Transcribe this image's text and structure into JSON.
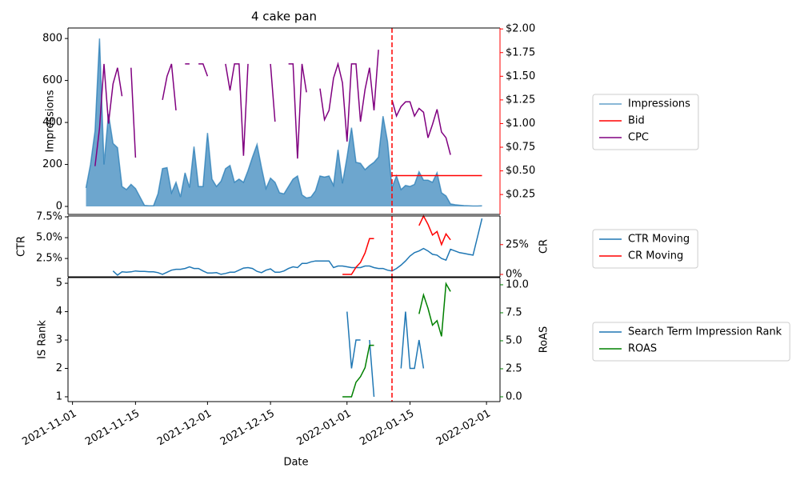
{
  "chart_data": [
    {
      "type": "line",
      "title": "4 cake pan",
      "ylabel": "Impressions",
      "x": [
        "2021-11-04",
        "2021-11-05",
        "2021-11-06",
        "2021-11-07",
        "2021-11-08",
        "2021-11-09",
        "2021-11-10",
        "2021-11-11",
        "2021-11-12",
        "2021-11-13",
        "2021-11-14",
        "2021-11-15",
        "2021-11-16",
        "2021-11-17",
        "2021-11-18",
        "2021-11-19",
        "2021-11-20",
        "2021-11-21",
        "2021-11-22",
        "2021-11-23",
        "2021-11-24",
        "2021-11-25",
        "2021-11-26",
        "2021-11-27",
        "2021-11-28",
        "2021-11-29",
        "2021-11-30",
        "2021-12-01",
        "2021-12-02",
        "2021-12-03",
        "2021-12-04",
        "2021-12-05",
        "2021-12-06",
        "2021-12-07",
        "2021-12-08",
        "2021-12-09",
        "2021-12-10",
        "2021-12-11",
        "2021-12-12",
        "2021-12-13",
        "2021-12-14",
        "2021-12-15",
        "2021-12-16",
        "2021-12-17",
        "2021-12-18",
        "2021-12-19",
        "2021-12-20",
        "2021-12-21",
        "2021-12-22",
        "2021-12-23",
        "2021-12-24",
        "2021-12-25",
        "2021-12-26",
        "2021-12-27",
        "2021-12-28",
        "2021-12-29",
        "2021-12-30",
        "2021-12-31",
        "2022-01-01",
        "2022-01-02",
        "2022-01-03",
        "2022-01-04",
        "2022-01-05",
        "2022-01-06",
        "2022-01-07",
        "2022-01-08",
        "2022-01-09",
        "2022-01-10",
        "2022-01-11",
        "2022-01-12",
        "2022-01-13",
        "2022-01-14",
        "2022-01-15",
        "2022-01-16",
        "2022-01-17",
        "2022-01-18",
        "2022-01-19",
        "2022-01-20",
        "2022-01-21",
        "2022-01-22",
        "2022-01-23",
        "2022-01-24",
        "2022-01-25",
        "2022-01-26",
        "2022-01-27",
        "2022-01-28",
        "2022-01-29",
        "2022-01-30",
        "2022-01-31"
      ],
      "xlim": [
        "2021-10-31",
        "2022-02-04"
      ],
      "ylim": [
        -38,
        850
      ],
      "yticks": [
        0,
        200,
        400,
        600,
        800
      ],
      "y2lim": [
        0.04,
        2.01
      ],
      "y2ticks": [
        {
          "value": 0.25,
          "label": "$0.25"
        },
        {
          "value": 0.5,
          "label": "$0.50"
        },
        {
          "value": 0.75,
          "label": "$0.75"
        },
        {
          "value": 1,
          "label": "$1.00"
        },
        {
          "value": 1.25,
          "label": "$1.25"
        },
        {
          "value": 1.5,
          "label": "$1.50"
        },
        {
          "value": 1.75,
          "label": "$1.75"
        },
        {
          "value": 2,
          "label": "$2.00"
        }
      ],
      "ytick_color": "blue",
      "y2tick_color": "red",
      "y2_spine_color": "red",
      "vline": "2022-01-11",
      "vline_color": "red",
      "legend": "outside right",
      "series": [
        {
          "name": "Impressions",
          "type": "area",
          "color": "#1f77b4",
          "values": [
            88,
            200,
            360,
            800,
            200,
            440,
            300,
            280,
            95,
            80,
            105,
            85,
            45,
            5,
            3,
            3,
            60,
            180,
            185,
            65,
            115,
            45,
            160,
            90,
            285,
            95,
            95,
            350,
            130,
            95,
            120,
            180,
            195,
            115,
            130,
            115,
            170,
            235,
            295,
            185,
            85,
            135,
            115,
            65,
            60,
            95,
            130,
            145,
            55,
            40,
            45,
            75,
            145,
            140,
            145,
            100,
            270,
            110,
            235,
            375,
            210,
            205,
            175,
            195,
            210,
            235,
            430,
            310,
            90,
            145,
            80,
            100,
            95,
            105,
            165,
            125,
            125,
            115,
            160,
            65,
            50,
            12,
            8,
            6,
            4,
            3,
            2,
            2,
            3
          ]
        },
        {
          "name": "Bid",
          "color": "red",
          "axis": "y2",
          "values": [
            null,
            null,
            null,
            null,
            null,
            null,
            null,
            null,
            null,
            null,
            null,
            null,
            null,
            null,
            null,
            null,
            null,
            null,
            null,
            null,
            null,
            null,
            null,
            null,
            null,
            null,
            null,
            null,
            null,
            null,
            null,
            null,
            null,
            null,
            null,
            null,
            null,
            null,
            null,
            null,
            null,
            null,
            null,
            null,
            null,
            null,
            null,
            null,
            null,
            null,
            null,
            null,
            null,
            null,
            null,
            null,
            null,
            null,
            null,
            null,
            null,
            null,
            null,
            null,
            null,
            null,
            null,
            null,
            0.45,
            0.45,
            0.45,
            0.45,
            0.45,
            0.45,
            0.45,
            0.45,
            0.45,
            0.45,
            0.45,
            0.45,
            0.45,
            0.45,
            0.45,
            0.45,
            0.45,
            0.45,
            0.45,
            0.45,
            0.45
          ]
        },
        {
          "name": "CPC",
          "color": "purple",
          "axis": "y2",
          "values": [
            null,
            null,
            0.55,
            0.95,
            1.63,
            1.0,
            1.42,
            1.59,
            1.29,
            null,
            1.59,
            0.64,
            null,
            null,
            null,
            null,
            null,
            1.25,
            1.5,
            1.63,
            1.14,
            null,
            1.63,
            1.63,
            null,
            1.63,
            1.63,
            1.5,
            null,
            null,
            null,
            1.63,
            1.35,
            1.63,
            1.63,
            0.66,
            1.63,
            null,
            null,
            null,
            null,
            1.63,
            1.02,
            null,
            null,
            1.63,
            1.63,
            0.63,
            1.63,
            1.33,
            null,
            null,
            1.37,
            1.04,
            1.14,
            1.48,
            1.63,
            1.43,
            0.81,
            1.63,
            1.63,
            1.02,
            1.36,
            1.59,
            1.14,
            1.78,
            null,
            null,
            1.25,
            1.08,
            1.18,
            1.23,
            1.23,
            1.08,
            1.16,
            1.12,
            0.85,
            0.99,
            1.15,
            0.91,
            0.85,
            0.67,
            null,
            null,
            null,
            null,
            null,
            null,
            null
          ]
        }
      ]
    },
    {
      "type": "line",
      "ylabel": "CTR",
      "y2label": "CR",
      "x": [
        "2021-11-10",
        "2021-11-11",
        "2021-11-12",
        "2021-11-13",
        "2021-11-14",
        "2021-11-15",
        "2021-11-16",
        "2021-11-17",
        "2021-11-18",
        "2021-11-19",
        "2021-11-20",
        "2021-11-21",
        "2021-11-22",
        "2021-11-23",
        "2021-11-24",
        "2021-11-25",
        "2021-11-26",
        "2021-11-27",
        "2021-11-28",
        "2021-11-29",
        "2021-11-30",
        "2021-12-01",
        "2021-12-02",
        "2021-12-03",
        "2021-12-04",
        "2021-12-05",
        "2021-12-06",
        "2021-12-07",
        "2021-12-08",
        "2021-12-09",
        "2021-12-10",
        "2021-12-11",
        "2021-12-12",
        "2021-12-13",
        "2021-12-14",
        "2021-12-15",
        "2021-12-16",
        "2021-12-17",
        "2021-12-18",
        "2021-12-19",
        "2021-12-20",
        "2021-12-21",
        "2021-12-22",
        "2021-12-23",
        "2021-12-24",
        "2021-12-25",
        "2021-12-26",
        "2021-12-27",
        "2021-12-28",
        "2021-12-29",
        "2021-12-30",
        "2021-12-31",
        "2022-01-01",
        "2022-01-02",
        "2022-01-03",
        "2022-01-04",
        "2022-01-05",
        "2022-01-06",
        "2022-01-07",
        "2022-01-08",
        "2022-01-09",
        "2022-01-10",
        "2022-01-11",
        "2022-01-12",
        "2022-01-13",
        "2022-01-14",
        "2022-01-15",
        "2022-01-16",
        "2022-01-17",
        "2022-01-18",
        "2022-01-19",
        "2022-01-20",
        "2022-01-21",
        "2022-01-22",
        "2022-01-23",
        "2022-01-24",
        "2022-01-25",
        "2022-01-26",
        "2022-01-27",
        "2022-01-28",
        "2022-01-29",
        "2022-01-30",
        "2022-01-31"
      ],
      "xlim": [
        "2021-10-31",
        "2022-02-04"
      ],
      "ylim": [
        0.3,
        7.6
      ],
      "yticks": [
        {
          "value": 2.5,
          "label": "2.5%"
        },
        {
          "value": 5,
          "label": "5.0%"
        },
        {
          "value": 7.5,
          "label": "7.5%"
        }
      ],
      "y2lim": [
        -2,
        49
      ],
      "y2ticks": [
        {
          "value": 0,
          "label": "0%"
        },
        {
          "value": 25,
          "label": "25%"
        }
      ],
      "ytick_color": "blue",
      "y2tick_color": "red",
      "vline": "2022-01-11",
      "vline_color": "red",
      "legend": "outside right",
      "series": [
        {
          "name": "CTR Moving",
          "color": "#1f77b4",
          "values": [
            1.0,
            0.5,
            0.9,
            0.85,
            0.9,
            1.0,
            0.95,
            0.95,
            0.9,
            0.9,
            0.8,
            0.6,
            0.85,
            1.1,
            1.2,
            1.2,
            1.3,
            1.5,
            1.3,
            1.3,
            1.0,
            0.75,
            0.75,
            0.8,
            0.6,
            0.7,
            0.85,
            0.85,
            1.1,
            1.35,
            1.4,
            1.3,
            0.95,
            0.8,
            1.1,
            1.25,
            0.85,
            0.85,
            1.0,
            1.3,
            1.5,
            1.4,
            1.9,
            1.9,
            2.1,
            2.2,
            2.2,
            2.2,
            2.2,
            1.4,
            1.6,
            1.6,
            1.5,
            1.4,
            1.4,
            1.4,
            1.6,
            1.6,
            1.4,
            1.3,
            1.3,
            1.1,
            1.0,
            1.3,
            1.7,
            2.2,
            2.8,
            3.2,
            3.4,
            3.7,
            3.4,
            3.0,
            2.9,
            2.5,
            2.3,
            3.6,
            3.4,
            3.2,
            3.1,
            3.0,
            2.9,
            5.1,
            7.3
          ]
        },
        {
          "name": "CR Moving",
          "color": "red",
          "axis": "y2",
          "values": [
            null,
            null,
            null,
            null,
            null,
            null,
            null,
            null,
            null,
            null,
            null,
            null,
            null,
            null,
            null,
            null,
            null,
            null,
            null,
            null,
            null,
            null,
            null,
            null,
            null,
            null,
            null,
            null,
            null,
            null,
            null,
            null,
            null,
            null,
            null,
            null,
            null,
            null,
            null,
            null,
            null,
            null,
            null,
            null,
            null,
            null,
            null,
            null,
            null,
            null,
            null,
            0,
            0,
            0,
            6,
            10,
            18,
            30,
            30,
            null,
            null,
            null,
            null,
            null,
            null,
            null,
            null,
            null,
            41,
            49,
            42,
            33,
            36,
            25,
            34,
            29,
            null,
            null,
            null,
            null,
            null,
            null,
            null
          ]
        }
      ]
    },
    {
      "type": "line",
      "ylabel": "IS Rank",
      "y2label": "RoAS",
      "xlabel": "Date",
      "x": [
        "2021-12-31",
        "2022-01-01",
        "2022-01-02",
        "2022-01-03",
        "2022-01-04",
        "2022-01-05",
        "2022-01-06",
        "2022-01-07",
        "2022-01-08",
        "2022-01-09",
        "2022-01-10",
        "2022-01-11",
        "2022-01-12",
        "2022-01-13",
        "2022-01-14",
        "2022-01-15",
        "2022-01-16",
        "2022-01-17",
        "2022-01-18",
        "2022-01-19",
        "2022-01-20",
        "2022-01-21",
        "2022-01-22",
        "2022-01-23",
        "2022-01-24"
      ],
      "xlim": [
        "2021-10-31",
        "2022-02-04"
      ],
      "xticks": [
        "2021-11-01",
        "2021-11-15",
        "2021-12-01",
        "2021-12-15",
        "2022-01-01",
        "2022-01-15",
        "2022-02-01"
      ],
      "ylim": [
        0.83,
        5.2
      ],
      "yticks": [
        1,
        2,
        3,
        4,
        5
      ],
      "y2lim": [
        -0.43,
        10.64
      ],
      "y2ticks": [
        {
          "value": 0,
          "label": "0.0"
        },
        2.5,
        {
          "value": 5,
          "label": "5.0"
        },
        7.5,
        {
          "value": 10,
          "label": "10.0"
        }
      ],
      "ytick_color": "blue",
      "y2tick_color": "green",
      "vline": "2022-01-11",
      "vline_color": "red",
      "legend": "outside right",
      "series": [
        {
          "name": "Search Term Impression Rank",
          "color": "#1f77b4",
          "values": [
            null,
            4,
            2,
            3,
            3,
            null,
            3,
            1,
            null,
            null,
            null,
            null,
            null,
            2,
            4,
            2,
            2,
            3,
            2,
            null,
            null,
            null,
            null,
            null,
            null
          ]
        },
        {
          "name": "ROAS",
          "color": "green",
          "axis": "y2",
          "values": [
            0,
            0,
            0,
            1.3,
            1.8,
            2.6,
            4.6,
            4.6,
            null,
            null,
            null,
            null,
            null,
            null,
            null,
            null,
            null,
            7.4,
            9.1,
            7.9,
            6.4,
            6.8,
            5.4,
            10.1,
            9.4
          ]
        }
      ]
    }
  ]
}
